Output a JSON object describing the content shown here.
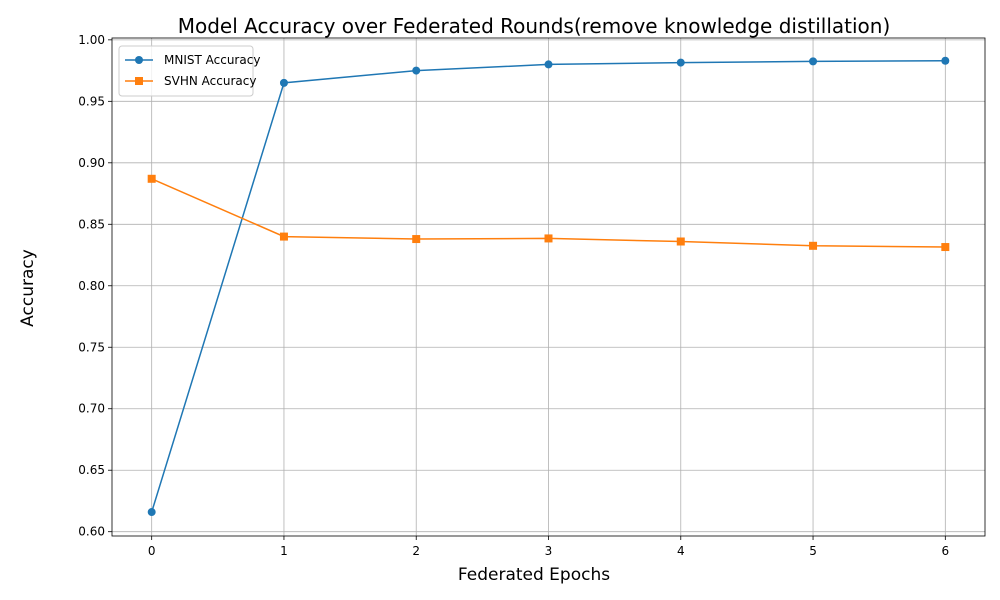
{
  "chart_data": {
    "type": "line",
    "title": "Model Accuracy over Federated Rounds(remove knowledge distillation)",
    "xlabel": "Federated Epochs",
    "ylabel": "Accuracy",
    "x": [
      0,
      1,
      2,
      3,
      4,
      5,
      6
    ],
    "xticks": [
      "0",
      "1",
      "2",
      "3",
      "4",
      "5",
      "6"
    ],
    "xlim": [
      -0.3,
      6.3
    ],
    "ylim": [
      0.5965,
      1.0015
    ],
    "yticks": [
      0.6,
      0.65,
      0.7,
      0.75,
      0.8,
      0.85,
      0.9,
      0.95,
      1.0
    ],
    "ytick_labels": [
      "0.60",
      "0.65",
      "0.70",
      "0.75",
      "0.80",
      "0.85",
      "0.90",
      "0.95",
      "1.00"
    ],
    "grid": true,
    "legend_position": "top-left",
    "series": [
      {
        "name": "MNIST Accuracy",
        "marker": "circle",
        "color": "#1f77b4",
        "values": [
          0.616,
          0.965,
          0.975,
          0.98,
          0.9815,
          0.9825,
          0.983
        ]
      },
      {
        "name": "SVHN Accuracy",
        "marker": "square",
        "color": "#ff7f0e",
        "values": [
          0.887,
          0.84,
          0.838,
          0.8385,
          0.836,
          0.8325,
          0.8315
        ]
      }
    ]
  }
}
